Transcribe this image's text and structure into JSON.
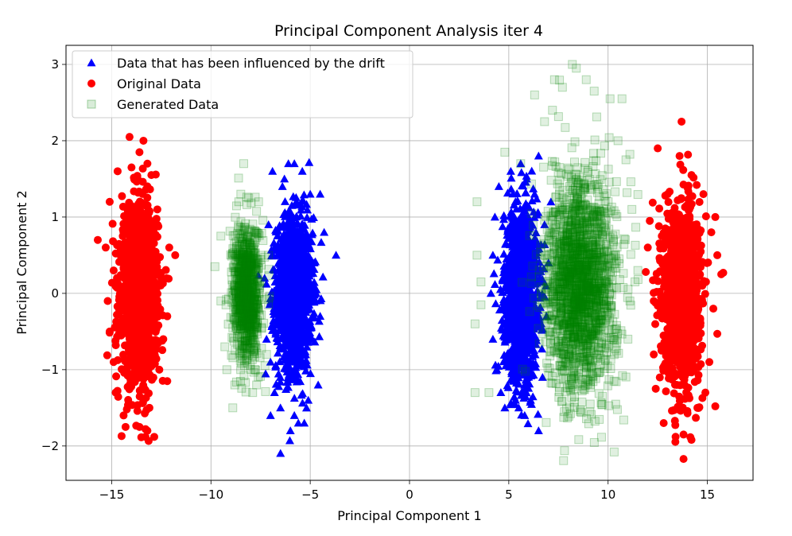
{
  "chart_data": {
    "type": "scatter",
    "title": "Principal Component Analysis iter 4",
    "xlabel": "Principal Component 1",
    "ylabel": "Principal Component 2",
    "xlim": [
      -17.3,
      17.3
    ],
    "ylim": [
      -2.45,
      3.25
    ],
    "xticks": [
      -15,
      -10,
      -5,
      0,
      5,
      10,
      15
    ],
    "xtick_labels": [
      "−15",
      "−10",
      "−5",
      "0",
      "5",
      "10",
      "15"
    ],
    "yticks": [
      -2,
      -1,
      0,
      1,
      2,
      3
    ],
    "ytick_labels": [
      "−2",
      "−1",
      "0",
      "1",
      "2",
      "3"
    ],
    "grid": true,
    "legend_position": "top-left",
    "series": [
      {
        "name": "Data that has been influenced by the drift",
        "marker": "triangle",
        "color": "#0000ff",
        "opacity": 1.0,
        "clusters": [
          {
            "cx": -5.8,
            "cy": 0.0,
            "sx": 0.45,
            "sy": 0.5
          },
          {
            "cx": 5.6,
            "cy": 0.0,
            "sx": 0.42,
            "sy": 0.55
          }
        ],
        "points": [
          [
            -6.9,
            1.6
          ],
          [
            -6.1,
            1.7
          ],
          [
            -5.8,
            1.7
          ],
          [
            -5.4,
            1.6
          ],
          [
            -6.3,
            1.5
          ],
          [
            -5.0,
            1.3
          ],
          [
            -4.5,
            1.3
          ],
          [
            -6.4,
            1.4
          ],
          [
            -7.1,
            0.9
          ],
          [
            -4.3,
            0.8
          ],
          [
            -3.7,
            0.5
          ],
          [
            -4.8,
            0.4
          ],
          [
            -7.3,
            0.2
          ],
          [
            -4.7,
            0.0
          ],
          [
            -4.5,
            -0.3
          ],
          [
            -7.2,
            -0.6
          ],
          [
            -4.9,
            -0.6
          ],
          [
            -7.0,
            -0.9
          ],
          [
            -6.8,
            -1.3
          ],
          [
            -4.6,
            -1.2
          ],
          [
            -5.1,
            -1.4
          ],
          [
            -7.0,
            -1.6
          ],
          [
            -6.5,
            -1.5
          ],
          [
            -5.8,
            -1.6
          ],
          [
            -5.6,
            -1.7
          ],
          [
            -5.3,
            -1.7
          ],
          [
            -6.0,
            -1.8
          ],
          [
            4.5,
            1.4
          ],
          [
            5.1,
            1.6
          ],
          [
            5.6,
            1.7
          ],
          [
            5.9,
            1.5
          ],
          [
            6.5,
            1.8
          ],
          [
            6.3,
            1.3
          ],
          [
            4.3,
            1.0
          ],
          [
            6.8,
            0.9
          ],
          [
            4.2,
            0.5
          ],
          [
            4.1,
            0.0
          ],
          [
            7.0,
            0.4
          ],
          [
            4.2,
            -0.6
          ],
          [
            6.9,
            -0.3
          ],
          [
            4.4,
            -1.0
          ],
          [
            4.6,
            -1.3
          ],
          [
            6.7,
            -1.1
          ],
          [
            4.8,
            -1.5
          ],
          [
            5.5,
            -1.5
          ],
          [
            6.1,
            -1.4
          ],
          [
            5.8,
            -1.6
          ],
          [
            6.5,
            -1.8
          ]
        ]
      },
      {
        "name": "Original Data",
        "marker": "circle",
        "color": "#ff0000",
        "opacity": 1.0,
        "clusters": [
          {
            "cx": -13.6,
            "cy": 0.0,
            "sx": 0.45,
            "sy": 0.55
          },
          {
            "cx": 13.7,
            "cy": 0.0,
            "sx": 0.45,
            "sy": 0.55
          }
        ],
        "points": [
          [
            -14.1,
            2.05
          ],
          [
            -13.4,
            2.0
          ],
          [
            -13.6,
            1.85
          ],
          [
            -13.2,
            1.7
          ],
          [
            -14.7,
            1.6
          ],
          [
            -13.0,
            1.55
          ],
          [
            -15.1,
            1.2
          ],
          [
            -12.7,
            1.1
          ],
          [
            -15.7,
            0.7
          ],
          [
            -12.1,
            0.6
          ],
          [
            -11.8,
            0.5
          ],
          [
            -15.3,
            0.6
          ],
          [
            -14.9,
            0.3
          ],
          [
            -12.5,
            0.2
          ],
          [
            -15.2,
            -0.1
          ],
          [
            -12.2,
            -0.3
          ],
          [
            -15.1,
            -0.5
          ],
          [
            -12.4,
            -0.6
          ],
          [
            -14.9,
            -0.9
          ],
          [
            -12.6,
            -1.0
          ],
          [
            -14.8,
            -1.3
          ],
          [
            -12.2,
            -1.15
          ],
          [
            -14.4,
            -1.6
          ],
          [
            -13.1,
            -1.5
          ],
          [
            -14.3,
            -1.75
          ],
          [
            -13.6,
            -1.75
          ],
          [
            -13.2,
            -1.8
          ],
          [
            -14.5,
            -1.87
          ],
          [
            -13.3,
            -1.88
          ],
          [
            13.7,
            2.25
          ],
          [
            12.5,
            1.9
          ],
          [
            13.6,
            1.8
          ],
          [
            14.2,
            1.55
          ],
          [
            13.0,
            1.3
          ],
          [
            14.8,
            1.3
          ],
          [
            12.1,
            0.95
          ],
          [
            15.4,
            1.0
          ],
          [
            15.2,
            0.8
          ],
          [
            12.0,
            0.6
          ],
          [
            15.5,
            0.5
          ],
          [
            15.7,
            0.25
          ],
          [
            15.8,
            0.27
          ],
          [
            11.9,
            0.28
          ],
          [
            12.3,
            -0.1
          ],
          [
            15.3,
            -0.2
          ],
          [
            15.5,
            -0.53
          ],
          [
            12.3,
            -0.8
          ],
          [
            15.1,
            -0.9
          ],
          [
            12.4,
            -1.25
          ],
          [
            14.9,
            -1.3
          ],
          [
            12.8,
            -1.7
          ],
          [
            14.5,
            -1.5
          ],
          [
            15.4,
            -1.48
          ],
          [
            13.4,
            -1.88
          ],
          [
            13.8,
            -1.85
          ],
          [
            14.2,
            -1.92
          ],
          [
            13.8,
            -2.17
          ]
        ]
      },
      {
        "name": "Generated Data",
        "marker": "square",
        "color": "#008000",
        "opacity": 0.12,
        "clusters": [
          {
            "cx": -8.2,
            "cy": 0.0,
            "sx": 0.35,
            "sy": 0.45
          },
          {
            "cx": 8.6,
            "cy": 0.1,
            "sx": 0.9,
            "sy": 0.7
          }
        ],
        "points": [
          [
            -8.6,
            1.2
          ],
          [
            -8.1,
            1.25
          ],
          [
            -7.6,
            1.2
          ],
          [
            -9.5,
            0.75
          ],
          [
            -9.8,
            0.35
          ],
          [
            -7.1,
            0.5
          ],
          [
            -9.5,
            -0.1
          ],
          [
            -9.3,
            -0.7
          ],
          [
            -7.2,
            -0.8
          ],
          [
            -9.2,
            -1.0
          ],
          [
            -8.8,
            -1.2
          ],
          [
            -7.7,
            -1.2
          ],
          [
            -7.9,
            -1.3
          ],
          [
            -8.9,
            -1.5
          ],
          [
            8.2,
            3.0
          ],
          [
            8.4,
            2.95
          ],
          [
            7.3,
            2.8
          ],
          [
            8.9,
            2.8
          ],
          [
            9.3,
            2.65
          ],
          [
            7.7,
            2.7
          ],
          [
            6.3,
            2.6
          ],
          [
            10.1,
            2.55
          ],
          [
            10.7,
            2.55
          ],
          [
            7.2,
            2.4
          ],
          [
            6.8,
            2.25
          ],
          [
            10.5,
            2.0
          ],
          [
            10.9,
            1.75
          ],
          [
            5.6,
            1.7
          ],
          [
            4.8,
            1.85
          ],
          [
            3.4,
            1.2
          ],
          [
            11.2,
            1.1
          ],
          [
            3.4,
            0.5
          ],
          [
            3.6,
            0.15
          ],
          [
            3.6,
            -0.15
          ],
          [
            11.5,
            0.3
          ],
          [
            11.1,
            -0.1
          ],
          [
            11.0,
            -0.6
          ],
          [
            3.3,
            -0.4
          ],
          [
            10.3,
            -1.15
          ],
          [
            3.3,
            -1.3
          ],
          [
            4.0,
            -1.3
          ],
          [
            7.8,
            -1.55
          ],
          [
            9.1,
            -1.45
          ],
          [
            8.6,
            -1.55
          ]
        ]
      }
    ]
  }
}
